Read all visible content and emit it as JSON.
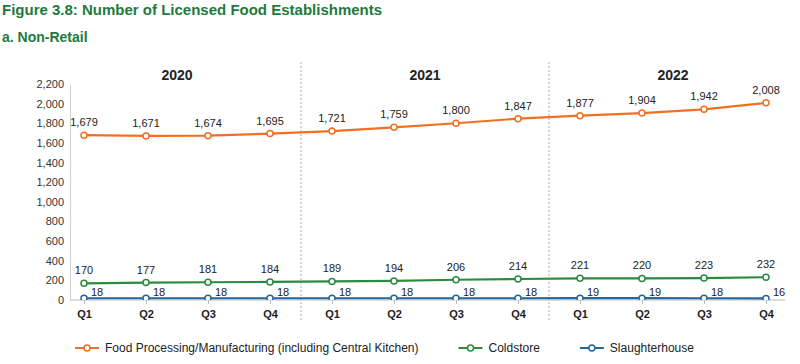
{
  "chart_data": {
    "type": "line",
    "title": "Figure 3.8: Number of Licensed Food Establishments",
    "subtitle": "a. Non-Retail",
    "annotations": [
      "2020",
      "2021",
      "2022"
    ],
    "categories": [
      "Q1",
      "Q2",
      "Q3",
      "Q4",
      "Q1",
      "Q2",
      "Q3",
      "Q4",
      "Q1",
      "Q2",
      "Q3",
      "Q4"
    ],
    "series": [
      {
        "name": "Food Processing/Manufacturing (including Central Kitchen)",
        "color": "#f26f21",
        "marker": "circle",
        "values": [
          1679,
          1671,
          1674,
          1695,
          1721,
          1759,
          1800,
          1847,
          1877,
          1904,
          1942,
          2008
        ],
        "value_labels": [
          "1,679",
          "1,671",
          "1,674",
          "1,695",
          "1,721",
          "1,759",
          "1,800",
          "1,847",
          "1,877",
          "1,904",
          "1,942",
          "2,008"
        ]
      },
      {
        "name": "Coldstore",
        "color": "#2a8a3e",
        "marker": "circle",
        "values": [
          170,
          177,
          181,
          184,
          189,
          194,
          206,
          214,
          221,
          220,
          223,
          232
        ]
      },
      {
        "name": "Slaughterhouse",
        "color": "#24679e",
        "marker": "circle",
        "values": [
          18,
          18,
          18,
          18,
          18,
          18,
          18,
          18,
          19,
          19,
          18,
          16
        ]
      }
    ],
    "ylim": [
      0,
      2200
    ],
    "yticks": [
      0,
      200,
      400,
      600,
      800,
      {
        "value": 1000,
        "label": "1,000"
      },
      {
        "value": 1200,
        "label": "1,200"
      },
      {
        "value": 1400,
        "label": "1,400"
      },
      {
        "value": 1600,
        "label": "1,600"
      },
      {
        "value": 1800,
        "label": "1,800"
      },
      {
        "value": 2000,
        "label": "2,000"
      },
      {
        "value": 2200,
        "label": "2,200"
      }
    ],
    "grid": false,
    "data_labels": true,
    "legend": "bottom"
  }
}
